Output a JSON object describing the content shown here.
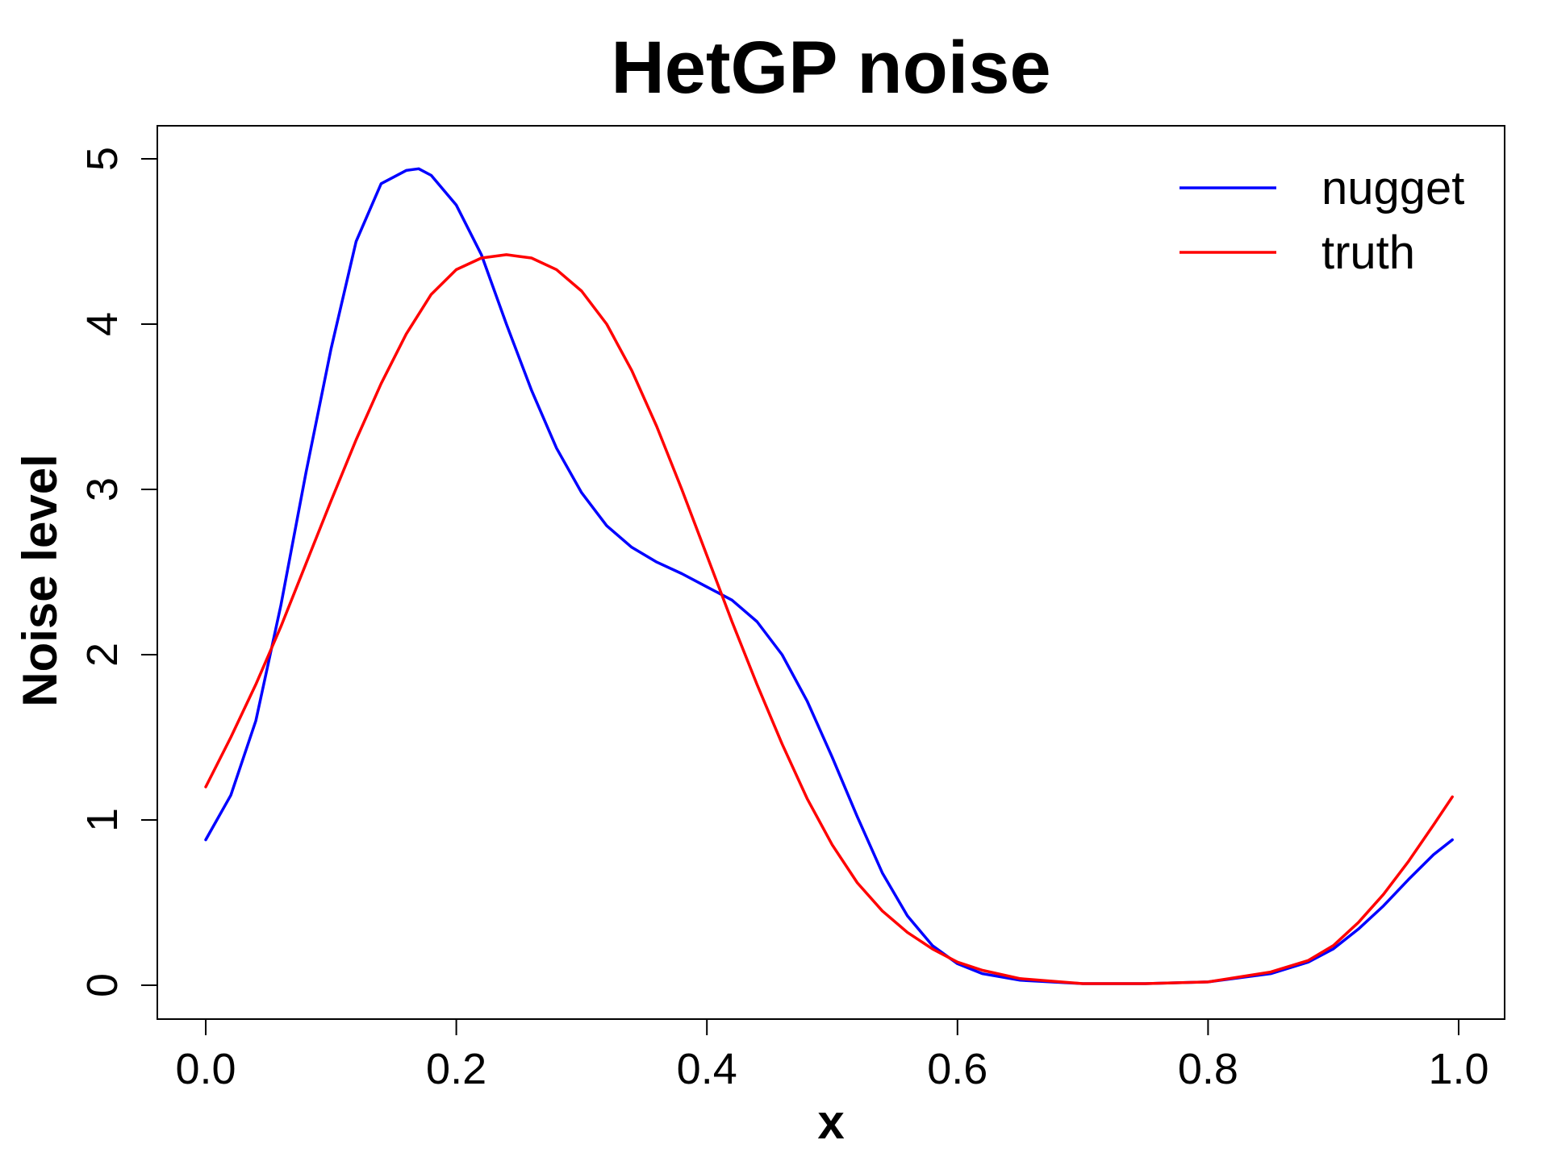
{
  "chart_data": {
    "type": "line",
    "title": "HetGP noise",
    "xlabel": "x",
    "ylabel": "Noise level",
    "xlim": [
      0,
      1
    ],
    "ylim": [
      0,
      5
    ],
    "x_ticks": [
      0.0,
      0.2,
      0.4,
      0.6,
      0.8,
      1.0
    ],
    "x_tick_labels": [
      "0.0",
      "0.2",
      "0.4",
      "0.6",
      "0.8",
      "1.0"
    ],
    "y_ticks": [
      0,
      1,
      2,
      3,
      4,
      5
    ],
    "y_tick_labels": [
      "0",
      "1",
      "2",
      "3",
      "4",
      "5"
    ],
    "grid": false,
    "legend_position": "top-right",
    "series": [
      {
        "name": "nugget",
        "color": "#0000ff",
        "x": [
          0.0,
          0.02,
          0.04,
          0.06,
          0.08,
          0.1,
          0.12,
          0.14,
          0.16,
          0.17,
          0.18,
          0.2,
          0.22,
          0.24,
          0.26,
          0.28,
          0.3,
          0.32,
          0.34,
          0.36,
          0.38,
          0.4,
          0.42,
          0.44,
          0.46,
          0.48,
          0.5,
          0.52,
          0.54,
          0.56,
          0.58,
          0.6,
          0.62,
          0.65,
          0.7,
          0.75,
          0.8,
          0.85,
          0.88,
          0.9,
          0.92,
          0.94,
          0.96,
          0.98,
          0.995
        ],
        "y": [
          0.88,
          1.15,
          1.6,
          2.3,
          3.1,
          3.85,
          4.5,
          4.85,
          4.93,
          4.94,
          4.9,
          4.72,
          4.42,
          4.0,
          3.6,
          3.25,
          2.98,
          2.78,
          2.65,
          2.56,
          2.49,
          2.41,
          2.33,
          2.2,
          2.0,
          1.72,
          1.38,
          1.02,
          0.68,
          0.42,
          0.24,
          0.13,
          0.07,
          0.03,
          0.01,
          0.01,
          0.02,
          0.07,
          0.14,
          0.22,
          0.34,
          0.48,
          0.64,
          0.79,
          0.88
        ]
      },
      {
        "name": "truth",
        "color": "#ff0000",
        "x": [
          0.0,
          0.02,
          0.04,
          0.06,
          0.08,
          0.1,
          0.12,
          0.14,
          0.16,
          0.18,
          0.2,
          0.22,
          0.24,
          0.25,
          0.26,
          0.28,
          0.3,
          0.32,
          0.34,
          0.36,
          0.38,
          0.4,
          0.42,
          0.44,
          0.46,
          0.48,
          0.5,
          0.52,
          0.54,
          0.56,
          0.58,
          0.6,
          0.62,
          0.65,
          0.7,
          0.75,
          0.8,
          0.85,
          0.88,
          0.9,
          0.92,
          0.94,
          0.96,
          0.98,
          0.995
        ],
        "y": [
          1.2,
          1.5,
          1.82,
          2.17,
          2.55,
          2.93,
          3.3,
          3.64,
          3.94,
          4.18,
          4.33,
          4.4,
          4.42,
          4.41,
          4.4,
          4.33,
          4.2,
          4.0,
          3.72,
          3.38,
          3.0,
          2.6,
          2.2,
          1.82,
          1.46,
          1.13,
          0.85,
          0.62,
          0.45,
          0.32,
          0.22,
          0.14,
          0.09,
          0.04,
          0.01,
          0.01,
          0.02,
          0.08,
          0.15,
          0.24,
          0.38,
          0.55,
          0.75,
          0.97,
          1.14
        ]
      }
    ]
  }
}
